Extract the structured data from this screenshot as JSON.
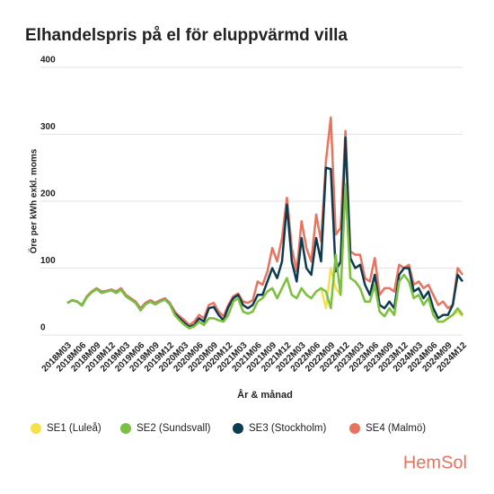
{
  "chart_data": {
    "type": "line",
    "title": "Elhandelspris på el för eluppvärmd villa",
    "y_label": "Öre per kWh exkl. moms",
    "x_label": "År & månad",
    "brand": "HemSol",
    "ylim": [
      0,
      400
    ],
    "yticks": [
      0,
      100,
      200,
      300,
      400
    ],
    "grid": true,
    "legend": "bottom",
    "categories": [
      "2018M03",
      null,
      null,
      "2018M06",
      null,
      null,
      "2018M09",
      null,
      null,
      "2018M12",
      null,
      null,
      "2019M03",
      null,
      null,
      "2019M06",
      null,
      null,
      "2019M09",
      null,
      null,
      "2019M12",
      null,
      null,
      "2020M03",
      null,
      null,
      "2020M06",
      null,
      null,
      "2020M09",
      null,
      null,
      "2020M12",
      null,
      null,
      "2021M03",
      null,
      null,
      "2021M06",
      null,
      null,
      "2021M09",
      null,
      null,
      "2021M12",
      null,
      null,
      "2022M03",
      null,
      null,
      "2022M06",
      null,
      null,
      "2022M09",
      null,
      null,
      "2022M12",
      null,
      null,
      "2023M03",
      null,
      null,
      "2023M06",
      null,
      null,
      "2023M09",
      null,
      null,
      "2023M12",
      null,
      null,
      "2024M03",
      null,
      null,
      "2024M06",
      null,
      null,
      "2024M09",
      null,
      null,
      "2024M12"
    ],
    "series": [
      {
        "name": "SE1 (Luleå)",
        "color": "#f5e14a",
        "values": [
          48,
          52,
          50,
          44,
          57,
          64,
          69,
          63,
          65,
          67,
          63,
          68,
          58,
          53,
          48,
          37,
          46,
          50,
          46,
          50,
          53,
          46,
          30,
          22,
          15,
          10,
          13,
          20,
          15,
          25,
          25,
          22,
          20,
          30,
          50,
          55,
          35,
          32,
          35,
          50,
          55,
          65,
          70,
          55,
          70,
          85,
          60,
          55,
          70,
          60,
          55,
          65,
          70,
          40,
          100,
          70,
          60,
          225,
          85,
          80,
          70,
          50,
          50,
          75,
          35,
          28,
          40,
          30,
          80,
          90,
          80,
          55,
          60,
          45,
          55,
          30,
          20,
          20,
          25,
          30,
          35,
          28
        ]
      },
      {
        "name": "SE2 (Sundsvall)",
        "color": "#7ac143",
        "values": [
          48,
          52,
          50,
          44,
          57,
          64,
          69,
          63,
          65,
          67,
          63,
          68,
          58,
          53,
          48,
          37,
          46,
          50,
          46,
          50,
          53,
          46,
          30,
          22,
          15,
          10,
          13,
          20,
          15,
          25,
          25,
          22,
          20,
          30,
          50,
          55,
          35,
          32,
          35,
          50,
          55,
          65,
          70,
          55,
          70,
          85,
          60,
          55,
          70,
          60,
          55,
          65,
          70,
          65,
          40,
          120,
          60,
          225,
          85,
          80,
          70,
          50,
          50,
          75,
          35,
          28,
          40,
          30,
          80,
          90,
          80,
          55,
          60,
          45,
          55,
          30,
          20,
          20,
          25,
          30,
          40,
          30
        ]
      },
      {
        "name": "SE3 (Stockholm)",
        "color": "#0d3b4f",
        "values": [
          48,
          52,
          50,
          44,
          57,
          64,
          69,
          63,
          65,
          67,
          63,
          68,
          58,
          53,
          48,
          37,
          46,
          50,
          46,
          50,
          53,
          46,
          32,
          25,
          18,
          12,
          15,
          25,
          20,
          40,
          42,
          30,
          22,
          42,
          55,
          60,
          45,
          40,
          45,
          60,
          60,
          80,
          100,
          85,
          110,
          195,
          110,
          80,
          145,
          100,
          90,
          145,
          110,
          250,
          248,
          95,
          110,
          295,
          115,
          100,
          105,
          75,
          60,
          90,
          45,
          40,
          50,
          40,
          90,
          100,
          100,
          65,
          70,
          55,
          65,
          40,
          25,
          30,
          30,
          45,
          90,
          80
        ]
      },
      {
        "name": "SE4 (Malmö)",
        "color": "#e8735f",
        "values": [
          48,
          52,
          50,
          45,
          58,
          65,
          70,
          65,
          66,
          68,
          65,
          70,
          60,
          55,
          50,
          40,
          48,
          52,
          48,
          52,
          55,
          48,
          35,
          28,
          22,
          15,
          20,
          30,
          25,
          45,
          48,
          35,
          28,
          45,
          58,
          62,
          50,
          48,
          52,
          80,
          75,
          95,
          130,
          110,
          145,
          205,
          130,
          95,
          170,
          130,
          110,
          180,
          140,
          260,
          325,
          150,
          160,
          305,
          125,
          120,
          120,
          85,
          80,
          115,
          60,
          70,
          70,
          65,
          105,
          100,
          105,
          75,
          80,
          70,
          75,
          60,
          45,
          50,
          40,
          45,
          100,
          90
        ]
      }
    ]
  }
}
